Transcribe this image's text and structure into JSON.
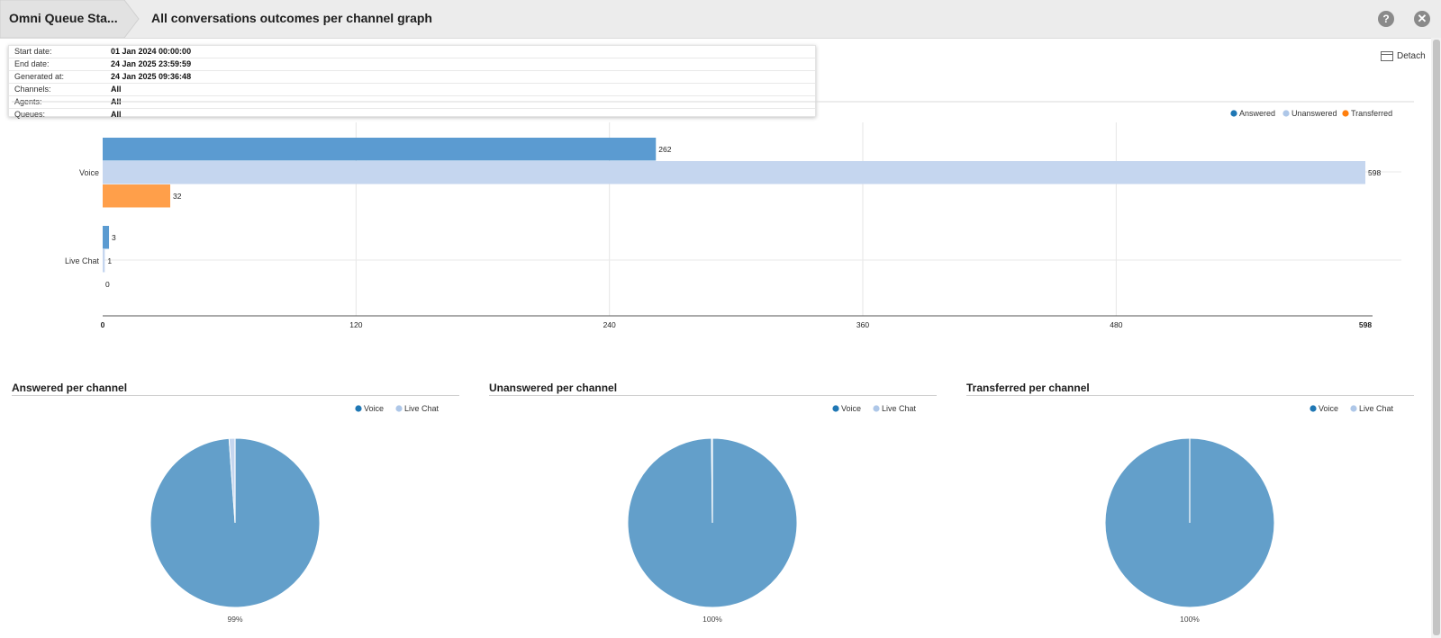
{
  "header": {
    "breadcrumb": "Omni Queue Sta...",
    "title": "All conversations outcomes per channel graph",
    "help_icon": "help-icon",
    "close_icon": "close-icon"
  },
  "toolbar": {
    "detach_label": "Detach",
    "detach_icon": "detach-window-icon"
  },
  "info": [
    {
      "key": "Start date:",
      "value": "01 Jan 2024 00:00:00"
    },
    {
      "key": "End date:",
      "value": "24 Jan 2025 23:59:59"
    },
    {
      "key": "Generated at:",
      "value": "24 Jan 2025 09:36:48"
    },
    {
      "key": "Channels:",
      "value": "All"
    },
    {
      "key": "Agents:",
      "value": "All"
    },
    {
      "key": "Queues:",
      "value": "All"
    }
  ],
  "colors": {
    "answered": "#5b9bd1",
    "unanswered": "#c5d6ef",
    "transferred": "#ff9f4a",
    "voice": "#639fca",
    "live_chat": "#c5d6ef",
    "legend_answered": "#1f77b4",
    "legend_unanswered": "#aec7e8",
    "legend_transferred": "#ff7f0e"
  },
  "chart_data": [
    {
      "type": "bar",
      "orientation": "horizontal",
      "categories": [
        "Voice",
        "Live Chat"
      ],
      "series": [
        {
          "name": "Answered",
          "values": [
            262,
            3
          ]
        },
        {
          "name": "Unanswered",
          "values": [
            598,
            1
          ]
        },
        {
          "name": "Transferred",
          "values": [
            32,
            0
          ]
        }
      ],
      "xticks": [
        "0",
        "120",
        "240",
        "360",
        "480",
        "598"
      ],
      "xlim": [
        0,
        598
      ],
      "grid": true,
      "legend": "top-right"
    },
    {
      "type": "pie",
      "title": "Answered per channel",
      "labels": [
        "Voice",
        "Live Chat"
      ],
      "values": [
        262,
        3
      ],
      "label_text": "99%",
      "legend": "top-right"
    },
    {
      "type": "pie",
      "title": "Unanswered per channel",
      "labels": [
        "Voice",
        "Live Chat"
      ],
      "values": [
        598,
        1
      ],
      "label_text": "100%",
      "legend": "top-right"
    },
    {
      "type": "pie",
      "title": "Transferred per channel",
      "labels": [
        "Voice",
        "Live Chat"
      ],
      "values": [
        32,
        0
      ],
      "label_text": "100%",
      "legend": "top-right"
    }
  ]
}
